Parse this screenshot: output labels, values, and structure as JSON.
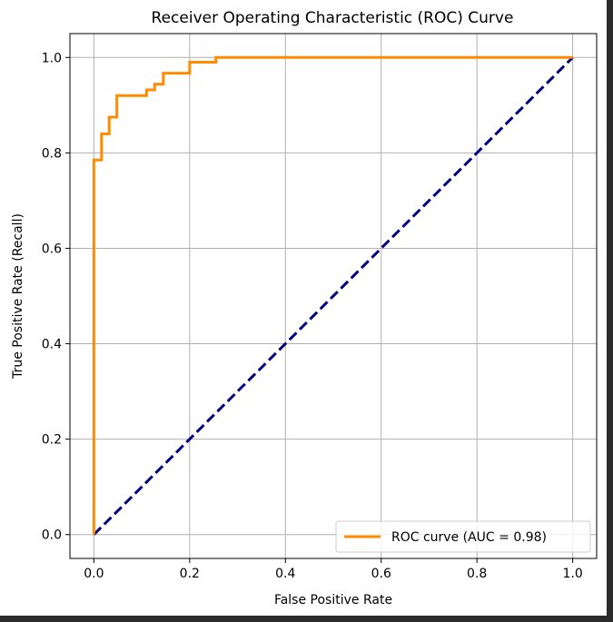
{
  "chart_data": {
    "type": "line",
    "title": "Receiver Operating Characteristic (ROC) Curve",
    "xlabel": "False Positive Rate",
    "ylabel": "True Positive Rate (Recall)",
    "xlim": [
      -0.05,
      1.05
    ],
    "ylim": [
      -0.05,
      1.05
    ],
    "xticks": [
      "0.0",
      "0.2",
      "0.4",
      "0.6",
      "0.8",
      "1.0"
    ],
    "yticks": [
      "0.0",
      "0.2",
      "0.4",
      "0.6",
      "0.8",
      "1.0"
    ],
    "xtick_values": [
      0.0,
      0.2,
      0.4,
      0.6,
      0.8,
      1.0
    ],
    "ytick_values": [
      0.0,
      0.2,
      0.4,
      0.6,
      0.8,
      1.0
    ],
    "grid": true,
    "legend_position": "lower-right",
    "series": [
      {
        "name": "ROC curve (AUC = 0.98)",
        "color": "#ff8c00",
        "style": "solid",
        "x": [
          0.0,
          0.0,
          0.0,
          0.016,
          0.016,
          0.032,
          0.032,
          0.048,
          0.048,
          0.11,
          0.11,
          0.127,
          0.127,
          0.145,
          0.145,
          0.2,
          0.2,
          0.255,
          0.255,
          1.0
        ],
        "y": [
          0.0,
          0.0,
          0.785,
          0.785,
          0.84,
          0.84,
          0.875,
          0.875,
          0.92,
          0.92,
          0.932,
          0.932,
          0.944,
          0.944,
          0.967,
          0.967,
          0.99,
          0.99,
          1.0,
          1.0
        ]
      },
      {
        "name": "",
        "color": "#000080",
        "style": "dashed",
        "x": [
          0.0,
          1.0
        ],
        "y": [
          0.0,
          1.0
        ]
      }
    ]
  }
}
